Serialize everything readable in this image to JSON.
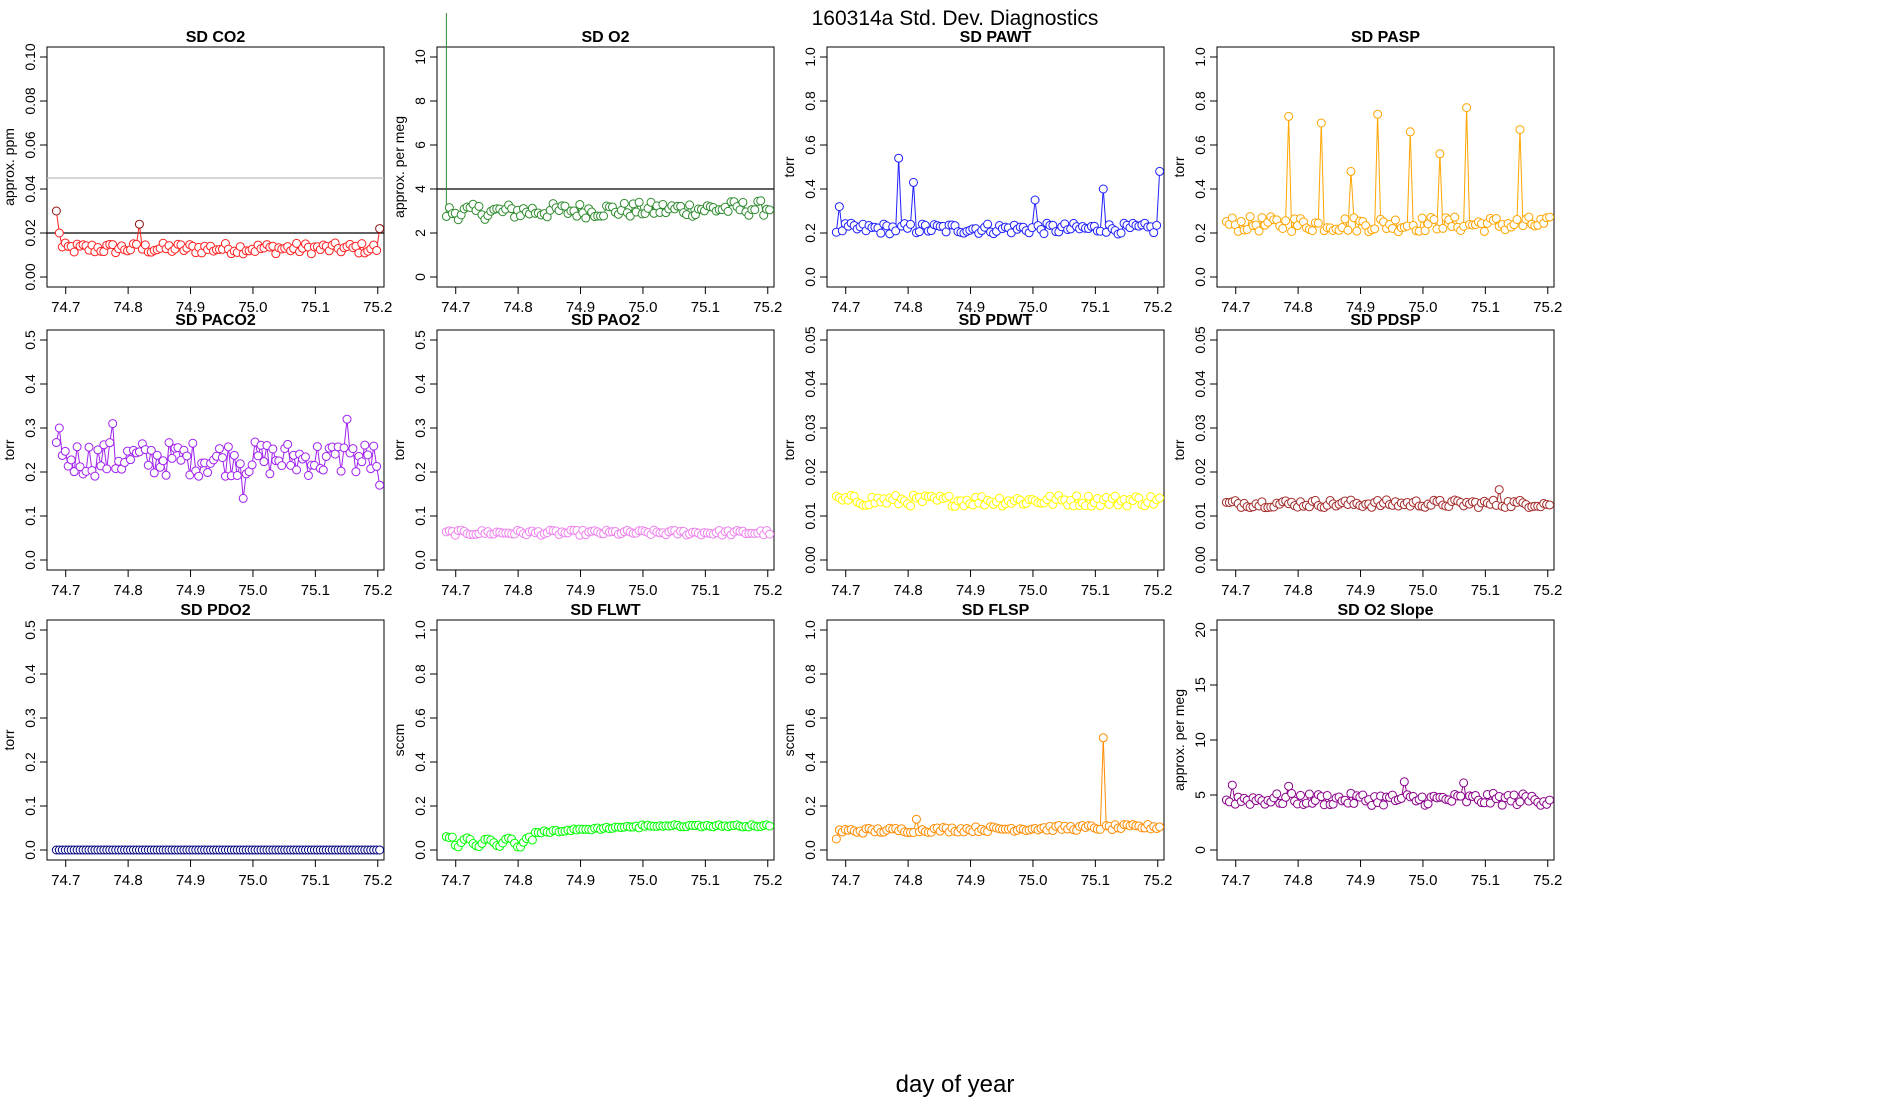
{
  "title": "160314a   Std. Dev. Diagnostics",
  "xlabel": "day of year",
  "colors": {
    "red": "#ff2020",
    "darkred": "#8b1010",
    "green": "#2e8b2e",
    "blue": "#2020ff",
    "orange": "#ffa500",
    "purple": "#a020f0",
    "violet": "#ee82ee",
    "yellow": "#ffff00",
    "brown": "#a52a2a",
    "navy": "#000080",
    "lime": "#00ff00",
    "darkorange": "#ff8c00",
    "darkmagenta": "#8b008b",
    "refline": "#000000",
    "grayline": "#bebebe"
  },
  "chart_data": [
    {
      "title": "SD CO2",
      "ylabel": "approx. ppm",
      "type": "line",
      "color": "red",
      "ylim": [
        0,
        0.1
      ],
      "yticks": [
        "0.00",
        "0.02",
        "0.04",
        "0.06",
        "0.08",
        "0.10"
      ],
      "xlim": [
        74.67,
        75.21
      ],
      "xticks": [
        "74.7",
        "74.8",
        "74.9",
        "75.0",
        "75.1",
        "75.2"
      ],
      "hlines": [
        {
          "y": 0.02,
          "color": "refline"
        },
        {
          "y": 0.045,
          "color": "grayline"
        }
      ],
      "base": 0.013,
      "amp": 0.0025,
      "spikes": [
        {
          "i": 0,
          "v": 0.03,
          "color": "darkred"
        },
        {
          "i": 1,
          "v": 0.02
        },
        {
          "i": 28,
          "v": 0.024,
          "color": "darkred"
        },
        {
          "i": 109,
          "v": 0.022,
          "color": "darkred"
        }
      ]
    },
    {
      "title": "SD O2",
      "ylabel": "approx. per meg",
      "type": "line",
      "color": "green",
      "ylim": [
        0,
        10
      ],
      "yticks": [
        "0",
        "2",
        "4",
        "6",
        "8",
        "10"
      ],
      "xlim": [
        74.67,
        75.21
      ],
      "xticks": [
        "74.7",
        "74.8",
        "74.9",
        "75.0",
        "75.1",
        "75.2"
      ],
      "hlines": [
        {
          "y": 4,
          "color": "refline"
        }
      ],
      "base": 3.0,
      "amp": 0.35,
      "trend": 0.2,
      "startline": 12,
      "spikes": []
    },
    {
      "title": "SD PAWT",
      "ylabel": "torr",
      "type": "line",
      "color": "blue",
      "ylim": [
        0,
        1
      ],
      "yticks": [
        "0.0",
        "0.2",
        "0.4",
        "0.6",
        "0.8",
        "1.0"
      ],
      "xlim": [
        74.67,
        75.21
      ],
      "xticks": [
        "74.7",
        "74.8",
        "74.9",
        "75.0",
        "75.1",
        "75.2"
      ],
      "hlines": [],
      "base": 0.22,
      "amp": 0.025,
      "spikes": [
        {
          "i": 1,
          "v": 0.32
        },
        {
          "i": 21,
          "v": 0.54
        },
        {
          "i": 26,
          "v": 0.43
        },
        {
          "i": 67,
          "v": 0.35
        },
        {
          "i": 90,
          "v": 0.4
        },
        {
          "i": 109,
          "v": 0.48
        }
      ]
    },
    {
      "title": "SD PASP",
      "ylabel": "torr",
      "type": "line",
      "color": "orange",
      "ylim": [
        0,
        1
      ],
      "yticks": [
        "0.0",
        "0.2",
        "0.4",
        "0.6",
        "0.8",
        "1.0"
      ],
      "xlim": [
        74.67,
        75.21
      ],
      "xticks": [
        "74.7",
        "74.8",
        "74.9",
        "75.0",
        "75.1",
        "75.2"
      ],
      "hlines": [],
      "base": 0.24,
      "amp": 0.035,
      "spikes": [
        {
          "i": 21,
          "v": 0.73
        },
        {
          "i": 32,
          "v": 0.7
        },
        {
          "i": 42,
          "v": 0.48
        },
        {
          "i": 51,
          "v": 0.74
        },
        {
          "i": 62,
          "v": 0.66
        },
        {
          "i": 72,
          "v": 0.56
        },
        {
          "i": 81,
          "v": 0.77
        },
        {
          "i": 99,
          "v": 0.67
        }
      ]
    },
    {
      "title": "SD PACO2",
      "ylabel": "torr",
      "type": "line",
      "color": "purple",
      "ylim": [
        0,
        0.5
      ],
      "yticks": [
        "0.0",
        "0.1",
        "0.2",
        "0.3",
        "0.4",
        "0.5"
      ],
      "xlim": [
        74.67,
        75.21
      ],
      "xticks": [
        "74.7",
        "74.8",
        "74.9",
        "75.0",
        "75.1",
        "75.2"
      ],
      "hlines": [],
      "base": 0.23,
      "amp": 0.04,
      "spikes": [
        {
          "i": 1,
          "v": 0.3
        },
        {
          "i": 19,
          "v": 0.31
        },
        {
          "i": 63,
          "v": 0.14
        },
        {
          "i": 98,
          "v": 0.32
        },
        {
          "i": 109,
          "v": 0.17
        }
      ]
    },
    {
      "title": "SD PAO2",
      "ylabel": "torr",
      "type": "line",
      "color": "violet",
      "ylim": [
        0,
        0.5
      ],
      "yticks": [
        "0.0",
        "0.1",
        "0.2",
        "0.3",
        "0.4",
        "0.5"
      ],
      "xlim": [
        74.67,
        75.21
      ],
      "xticks": [
        "74.7",
        "74.8",
        "74.9",
        "75.0",
        "75.1",
        "75.2"
      ],
      "hlines": [],
      "base": 0.062,
      "amp": 0.006,
      "spikes": []
    },
    {
      "title": "SD PDWT",
      "ylabel": "torr",
      "type": "line",
      "color": "yellow",
      "ylim": [
        0,
        0.05
      ],
      "yticks": [
        "0.00",
        "0.01",
        "0.02",
        "0.03",
        "0.04",
        "0.05"
      ],
      "xlim": [
        74.67,
        75.21
      ],
      "xticks": [
        "74.7",
        "74.8",
        "74.9",
        "75.0",
        "75.1",
        "75.2"
      ],
      "hlines": [],
      "base": 0.0135,
      "amp": 0.0013,
      "spikes": []
    },
    {
      "title": "SD PDSP",
      "ylabel": "torr",
      "type": "line",
      "color": "brown",
      "ylim": [
        0,
        0.05
      ],
      "yticks": [
        "0.00",
        "0.01",
        "0.02",
        "0.03",
        "0.04",
        "0.05"
      ],
      "xlim": [
        74.67,
        75.21
      ],
      "xticks": [
        "74.7",
        "74.8",
        "74.9",
        "75.0",
        "75.1",
        "75.2"
      ],
      "hlines": [],
      "base": 0.0128,
      "amp": 0.0009,
      "spikes": [
        {
          "i": 92,
          "v": 0.016
        }
      ]
    },
    {
      "title": "SD PDO2",
      "ylabel": "torr",
      "type": "line",
      "color": "navy",
      "ylim": [
        0,
        0.5
      ],
      "yticks": [
        "0.0",
        "0.1",
        "0.2",
        "0.3",
        "0.4",
        "0.5"
      ],
      "xlim": [
        74.67,
        75.21
      ],
      "xticks": [
        "74.7",
        "74.8",
        "74.9",
        "75.0",
        "75.1",
        "75.2"
      ],
      "hlines": [],
      "base": 0.0,
      "amp": 0.0,
      "spikes": []
    },
    {
      "title": "SD FLWT",
      "ylabel": "sccm",
      "type": "line",
      "color": "lime",
      "ylim": [
        0,
        1
      ],
      "yticks": [
        "0.0",
        "0.2",
        "0.4",
        "0.6",
        "0.8",
        "1.0"
      ],
      "xlim": [
        74.67,
        75.21
      ],
      "xticks": [
        "74.7",
        "74.8",
        "74.9",
        "75.0",
        "75.1",
        "75.2"
      ],
      "hlines": [],
      "base": 0.095,
      "amp": 0.006,
      "profile": "flwt",
      "spikes": []
    },
    {
      "title": "SD FLSP",
      "ylabel": "sccm",
      "type": "line",
      "color": "darkorange",
      "ylim": [
        0,
        1
      ],
      "yticks": [
        "0.0",
        "0.2",
        "0.4",
        "0.6",
        "0.8",
        "1.0"
      ],
      "xlim": [
        74.67,
        75.21
      ],
      "xticks": [
        "74.7",
        "74.8",
        "74.9",
        "75.0",
        "75.1",
        "75.2"
      ],
      "hlines": [],
      "base": 0.092,
      "amp": 0.012,
      "trend": 0.02,
      "spikes": [
        {
          "i": 0,
          "v": 0.05
        },
        {
          "i": 90,
          "v": 0.51
        },
        {
          "i": 27,
          "v": 0.14
        }
      ]
    },
    {
      "title": "SD O2 Slope",
      "ylabel": "approx. per meg",
      "type": "line",
      "color": "darkmagenta",
      "ylim": [
        0,
        20
      ],
      "yticks": [
        "0",
        "5",
        "10",
        "15",
        "20"
      ],
      "xlim": [
        74.67,
        75.21
      ],
      "xticks": [
        "74.7",
        "74.8",
        "74.9",
        "75.0",
        "75.1",
        "75.2"
      ],
      "hlines": [],
      "base": 4.6,
      "amp": 0.55,
      "spikes": [
        {
          "i": 2,
          "v": 5.9
        },
        {
          "i": 21,
          "v": 5.8
        },
        {
          "i": 60,
          "v": 6.2
        },
        {
          "i": 80,
          "v": 6.1
        }
      ]
    }
  ]
}
